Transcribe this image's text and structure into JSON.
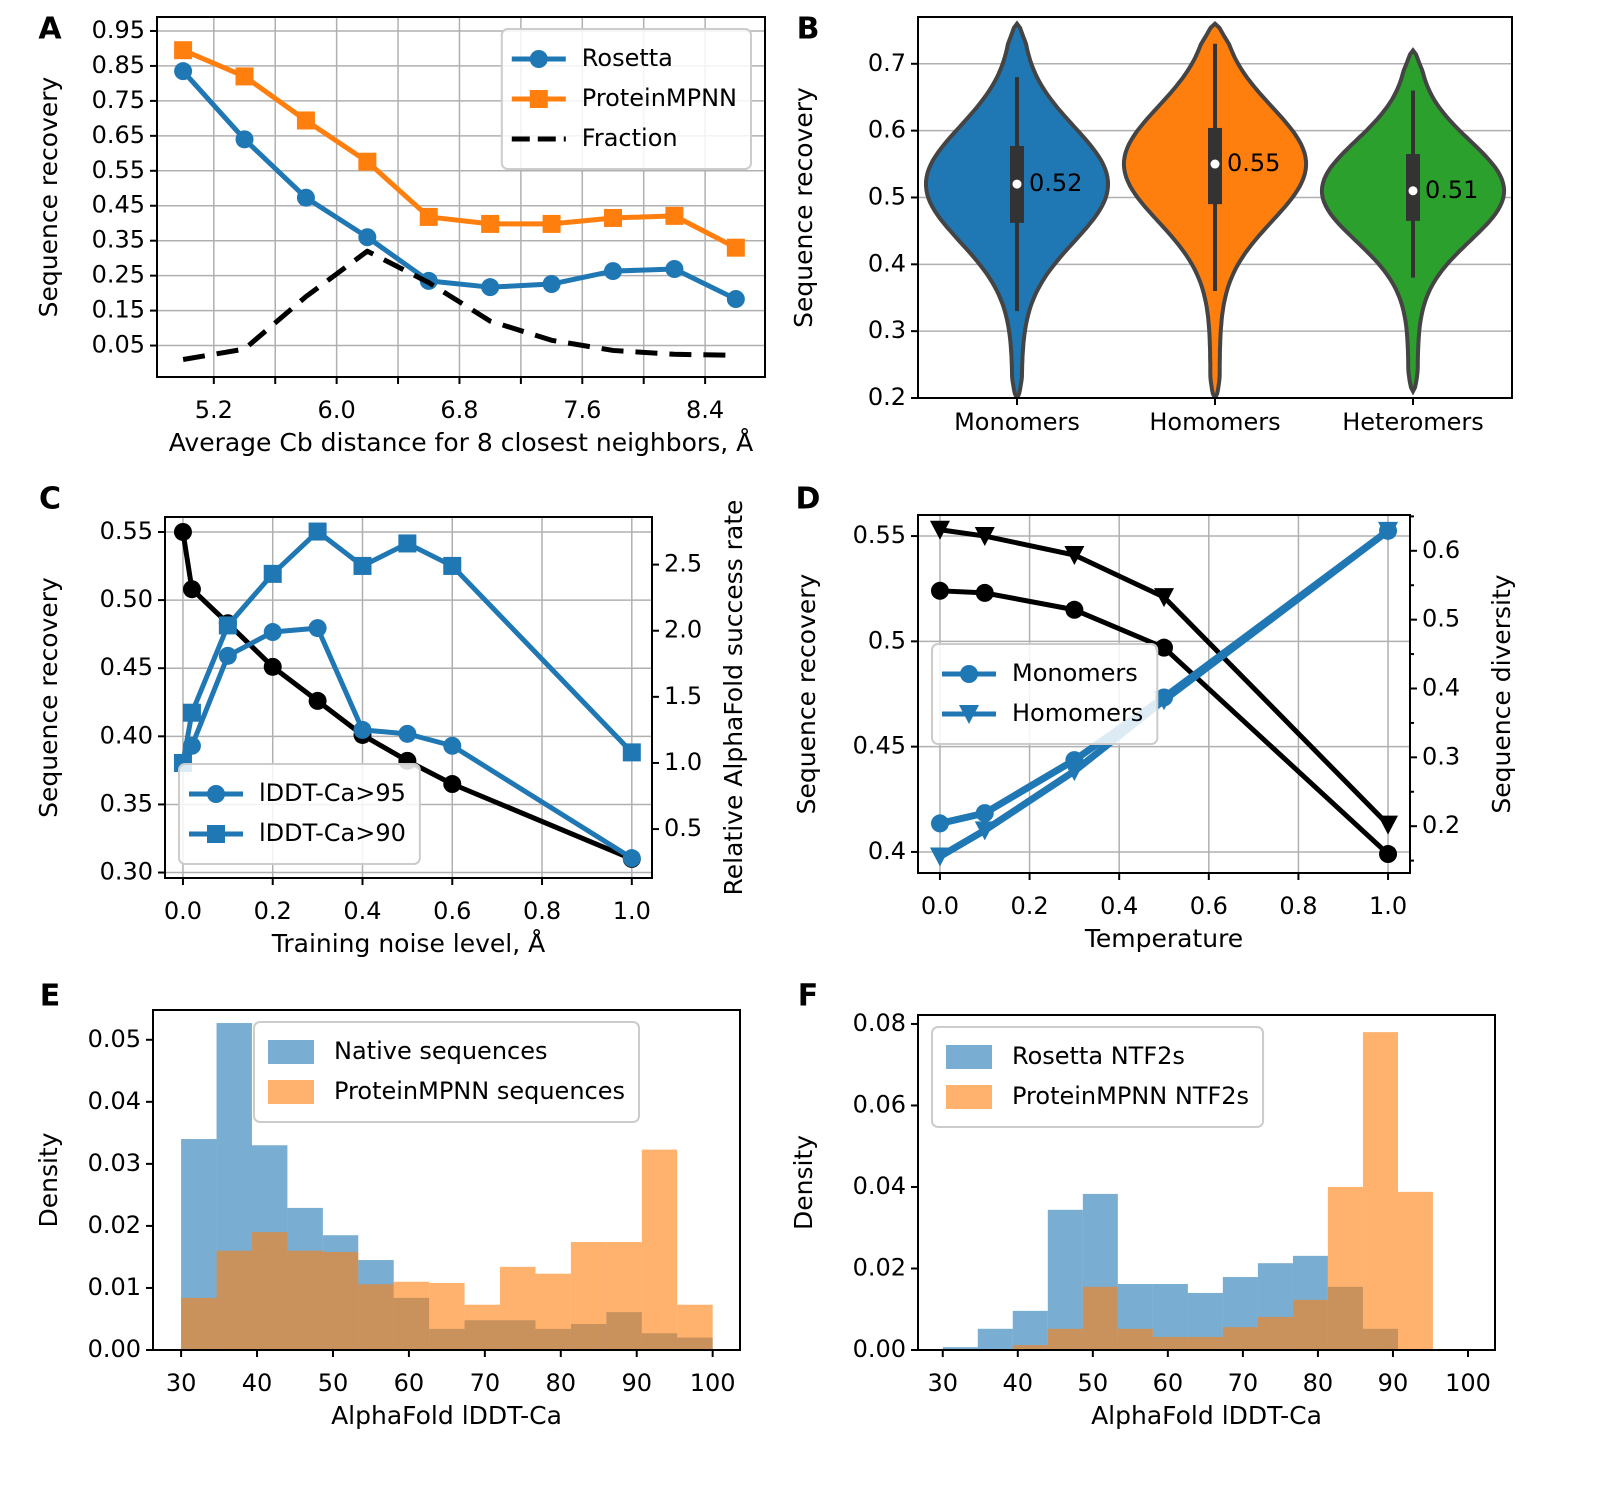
{
  "chart_data": [
    {
      "type": "line",
      "label": "A",
      "xlabel": "Average Cb distance for 8 closest neighbors, Å",
      "ylabel": "Sequence recovery",
      "x": [
        5.0,
        5.4,
        5.8,
        6.2,
        6.6,
        7.0,
        7.4,
        7.8,
        8.2,
        8.6
      ],
      "series": [
        {
          "name": "Rosetta",
          "color": "#1f77b4",
          "marker": "circle",
          "values": [
            0.835,
            0.64,
            0.473,
            0.36,
            0.235,
            0.217,
            0.226,
            0.263,
            0.269,
            0.183
          ]
        },
        {
          "name": "ProteinMPNN",
          "color": "#ff7f0e",
          "marker": "square",
          "values": [
            0.895,
            0.82,
            0.694,
            0.576,
            0.418,
            0.398,
            0.398,
            0.415,
            0.421,
            0.33
          ]
        },
        {
          "name": "Fraction",
          "color": "#000000",
          "marker": "none",
          "linestyle": "dashed",
          "values": [
            0.01,
            0.04,
            0.19,
            0.32,
            0.23,
            0.12,
            0.065,
            0.036,
            0.025,
            0.022
          ]
        }
      ],
      "xlim": [
        4.83,
        8.79
      ],
      "ylim": [
        -0.04,
        0.99
      ],
      "xticks": [
        5.2,
        {
          "value": 6,
          "label": "6.0"
        },
        6.8,
        7.6,
        8.4
      ],
      "xminorticks": [
        5.6,
        6.4,
        7.2,
        8.0
      ],
      "yticks": [
        0.05,
        0.15,
        0.25,
        0.35,
        0.45,
        0.55,
        0.65,
        0.75,
        0.85,
        0.95
      ],
      "grid": "both",
      "legend": "upper right"
    },
    {
      "type": "violin",
      "label": "B",
      "ylabel": "Sequence recovery",
      "categories": [
        "Monomers",
        "Homomers",
        "Heteromers"
      ],
      "colors": [
        "#1f77b4",
        "#ff7f0e",
        "#2ca02c"
      ],
      "values": [
        0.52,
        0.55,
        0.51
      ],
      "q1": [
        0.462,
        0.49,
        0.465
      ],
      "q3": [
        0.577,
        0.604,
        0.565
      ],
      "whisker_low": [
        0.33,
        0.36,
        0.38
      ],
      "whisker_high": [
        0.68,
        0.73,
        0.66
      ],
      "min": [
        0.2,
        0.2,
        0.21
      ],
      "max": [
        0.76,
        0.76,
        0.72
      ],
      "ylim": [
        0.2,
        0.77
      ],
      "yticks": [
        0.2,
        0.3,
        0.4,
        0.5,
        0.6,
        0.7
      ],
      "grid": "y"
    },
    {
      "type": "line",
      "label": "C",
      "xlabel": "Training noise level, Å",
      "ylabel": "Sequence recovery",
      "y2label": "Relative AlphaFold success rate",
      "y2color": "#1f77b4",
      "x": [
        0,
        0.02,
        0.1,
        0.2,
        0.3,
        0.4,
        0.5,
        0.6,
        1.0
      ],
      "series": [
        {
          "color": "#000000",
          "marker": "circle",
          "values": [
            0.55,
            0.508,
            0.483,
            0.451,
            0.426,
            0.401,
            0.382,
            0.365,
            0.31
          ]
        },
        {
          "name": "lDDT-Ca>95",
          "color": "#1f77b4",
          "marker": "circle",
          "axis": "y2",
          "values": [
            1.0,
            1.13,
            1.81,
            1.99,
            2.02,
            1.25,
            1.22,
            1.13,
            0.28
          ]
        },
        {
          "name": "lDDT-Ca>90",
          "color": "#1f77b4",
          "marker": "square",
          "axis": "y2",
          "values": [
            1.0,
            1.38,
            2.04,
            2.43,
            2.75,
            2.49,
            2.66,
            2.49,
            1.08
          ]
        }
      ],
      "xlim": [
        -0.04,
        1.045
      ],
      "ylim": [
        0.296,
        0.561
      ],
      "y2lim": [
        0.13,
        2.86
      ],
      "xticks": [
        {
          "value": 0,
          "label": "0.0"
        },
        0.2,
        0.4,
        0.6,
        0.8,
        {
          "value": 1,
          "label": "1.0"
        }
      ],
      "yticks": [
        {
          "value": 0.3,
          "label": "0.30"
        },
        0.35,
        {
          "value": 0.4,
          "label": "0.40"
        },
        0.45,
        {
          "value": 0.5,
          "label": "0.50"
        },
        0.55
      ],
      "y2ticks": [
        0.5,
        {
          "value": 1,
          "label": "1.0"
        },
        1.5,
        {
          "value": 2,
          "label": "2.0"
        },
        2.5
      ],
      "grid": "both",
      "legend": "lower left"
    },
    {
      "type": "line",
      "label": "D",
      "xlabel": "Temperature",
      "ylabel": "Sequence recovery",
      "y2label": "Sequence diversity",
      "y2color": "#1f77b4",
      "x": [
        0,
        0.1,
        0.3,
        0.5,
        1.0
      ],
      "series": [
        {
          "color": "#000000",
          "marker": "circle",
          "values": [
            0.524,
            0.523,
            0.515,
            0.497,
            0.399
          ]
        },
        {
          "color": "#000000",
          "marker": "triangle",
          "values": [
            0.553,
            0.55,
            0.541,
            0.521,
            0.413
          ]
        },
        {
          "name": "Monomers",
          "color": "#1f77b4",
          "marker": "circle",
          "axis": "y2",
          "values": [
            0.204,
            0.219,
            0.296,
            0.387,
            0.629
          ]
        },
        {
          "name": "Homomers",
          "color": "#1f77b4",
          "marker": "triangle",
          "axis": "y2",
          "values": [
            0.156,
            0.194,
            0.28,
            0.383,
            0.629
          ]
        }
      ],
      "xlim": [
        -0.049,
        1.049
      ],
      "ylim": [
        0.39,
        0.56
      ],
      "y2lim": [
        0.132,
        0.652
      ],
      "xticks": [
        {
          "value": 0,
          "label": "0.0"
        },
        0.2,
        0.4,
        0.6,
        0.8,
        {
          "value": 1,
          "label": "1.0"
        }
      ],
      "yticks": [
        0.4,
        0.45,
        0.5,
        0.55
      ],
      "y2ticks": [
        0.2,
        0.3,
        0.4,
        0.5,
        0.6
      ],
      "y2minorticks": [
        0.15,
        0.25,
        0.35,
        0.45,
        0.55,
        0.65
      ],
      "grid": "both",
      "legend": "center left"
    },
    {
      "type": "histogram",
      "label": "E",
      "xlabel": "AlphaFold lDDT-Ca",
      "ylabel": "Density",
      "alpha": 0.6,
      "bins": [
        30,
        34.67,
        39.33,
        44,
        48.67,
        53.33,
        58,
        62.67,
        67.33,
        72,
        76.67,
        81.33,
        86,
        90.67,
        95.33,
        100
      ],
      "series": [
        {
          "name": "Native sequences",
          "color": "#1f77b4",
          "values": [
            0.034,
            0.0527,
            0.033,
            0.0229,
            0.0185,
            0.0145,
            0.0084,
            0.0034,
            0.0048,
            0.0048,
            0.0034,
            0.0042,
            0.0061,
            0.0027,
            0.002
          ]
        },
        {
          "name": "ProteinMPNN sequences",
          "color": "#ff7f0e",
          "values": [
            0.0084,
            0.016,
            0.019,
            0.016,
            0.0158,
            0.0106,
            0.011,
            0.0108,
            0.0073,
            0.0134,
            0.0123,
            0.0174,
            0.0174,
            0.0323,
            0.0073
          ]
        }
      ],
      "xlim": [
        26.3,
        103.6
      ],
      "ylim": [
        0,
        0.0548
      ],
      "xticks": [
        30,
        40,
        50,
        60,
        70,
        80,
        90,
        100
      ],
      "yticks": [
        {
          "value": 0,
          "label": "0.00"
        },
        0.01,
        0.02,
        0.03,
        0.04,
        0.05
      ],
      "legend": "upper center"
    },
    {
      "type": "histogram",
      "label": "F",
      "xlabel": "AlphaFold lDDT-Ca",
      "ylabel": "Density",
      "alpha": 0.6,
      "bins": [
        30,
        34.67,
        39.33,
        44,
        48.67,
        53.33,
        58,
        62.67,
        67.33,
        72,
        76.67,
        81.33,
        86,
        90.67,
        95.33
      ],
      "series": [
        {
          "name": "Rosetta NTF2s",
          "color": "#1f77b4",
          "values": [
            0.0007,
            0.0052,
            0.0096,
            0.0344,
            0.0383,
            0.0162,
            0.0162,
            0.014,
            0.0179,
            0.0213,
            0.0231,
            0.0155,
            0.0052,
            0
          ]
        },
        {
          "name": "ProteinMPNN NTF2s",
          "color": "#ff7f0e",
          "values": [
            0,
            0,
            0.0012,
            0.0052,
            0.0155,
            0.0052,
            0.0032,
            0.0032,
            0.0056,
            0.0081,
            0.0123,
            0.04,
            0.078,
            0.0388
          ]
        }
      ],
      "xlim": [
        26.7,
        103.6
      ],
      "ylim": [
        0,
        0.0822
      ],
      "xticks": [
        30,
        40,
        50,
        60,
        70,
        80,
        90,
        100
      ],
      "yticks": [
        {
          "value": 0,
          "label": "0.00"
        },
        0.02,
        0.04,
        0.06,
        0.08
      ],
      "legend": "upper left"
    }
  ]
}
